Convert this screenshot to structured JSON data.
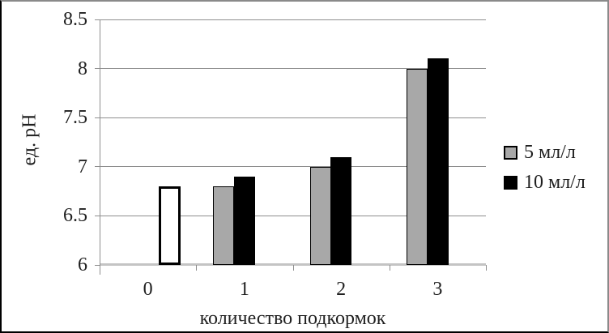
{
  "chart_data": {
    "type": "bar",
    "title": "",
    "ylabel": "ед. рН",
    "xlabel": "количество подкормок",
    "ylim": [
      6,
      8.5
    ],
    "yticks": [
      8.5,
      8,
      7.5,
      7,
      6.5,
      6
    ],
    "categories": [
      "0",
      "1",
      "2",
      "3"
    ],
    "series": [
      {
        "name": "5 мл/л",
        "values": [
          null,
          6.8,
          7.0,
          8.0
        ],
        "fill": "#a8a8a8",
        "border": "#000000",
        "border_width": 1,
        "in_legend": true
      },
      {
        "name": "10 мл/л",
        "values": [
          null,
          6.9,
          7.1,
          8.1
        ],
        "fill": "#000000",
        "border": "#000000",
        "border_width": 1,
        "in_legend": true
      },
      {
        "name": "",
        "values": [
          6.8,
          null,
          null,
          null
        ],
        "fill": "#ffffff",
        "border": "#000000",
        "border_width": 3,
        "in_legend": false
      }
    ],
    "legend_position": "right",
    "grid": true,
    "colors": {
      "gridline": "#8e8e8e",
      "axis_line": "#c4c4c4",
      "bar_gray": "#a8a8a8",
      "bar_black": "#000000",
      "text": "#1f1f1f"
    }
  }
}
